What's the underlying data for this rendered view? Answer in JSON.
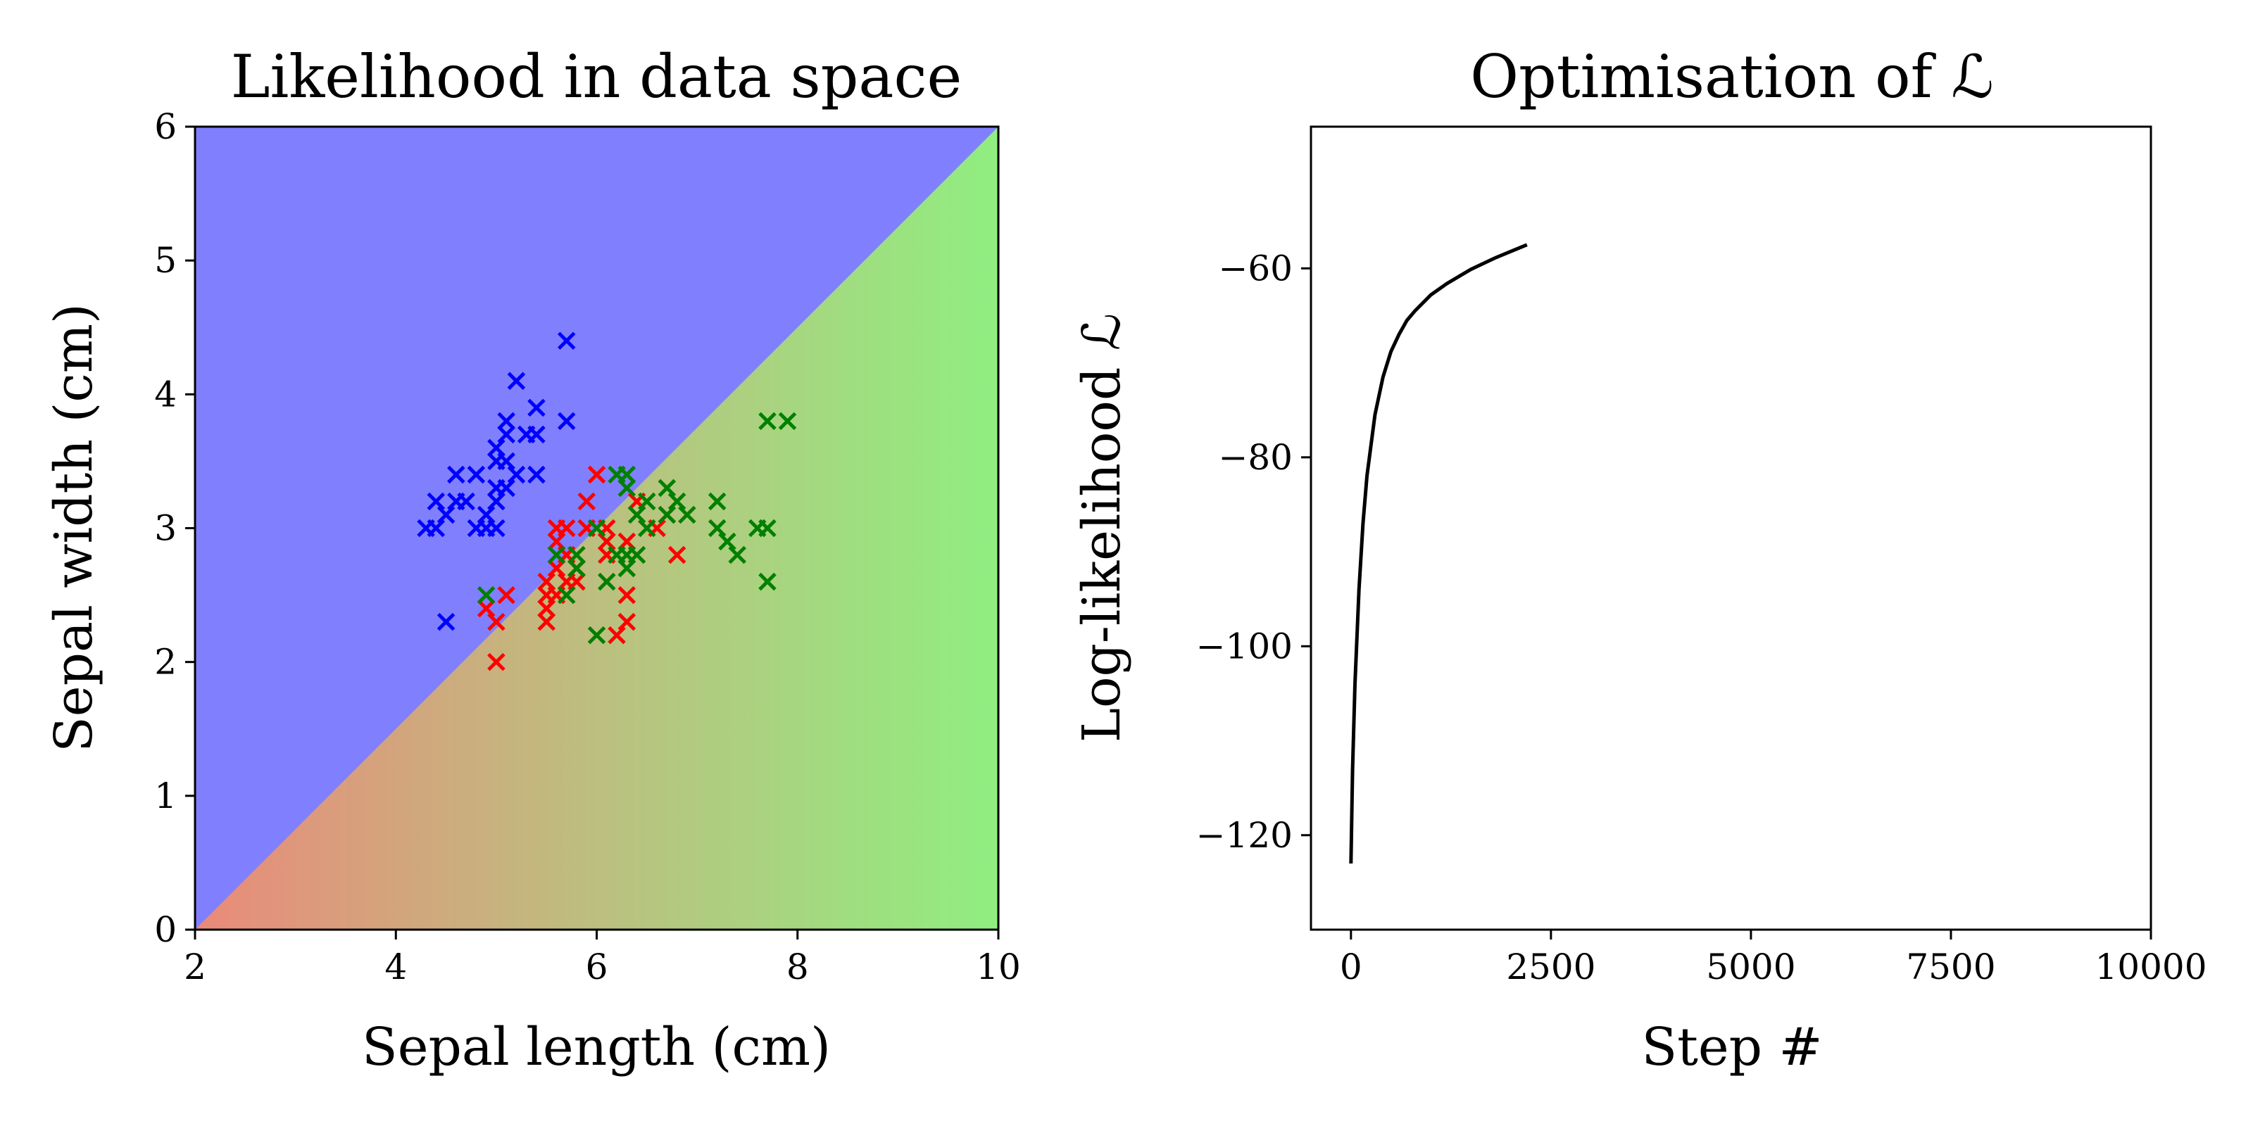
{
  "chart_data": [
    {
      "type": "scatter",
      "title": "Likelihood in data space",
      "xlabel": "Sepal length (cm)",
      "ylabel": "Sepal width (cm)",
      "xlim": [
        2,
        10
      ],
      "ylim": [
        0,
        6
      ],
      "xticks": [
        "2",
        "4",
        "6",
        "8",
        "10"
      ],
      "yticks": [
        "0",
        "1",
        "2",
        "3",
        "4",
        "5",
        "6"
      ],
      "grid": false,
      "background": "class-likelihood color map (blue upper-left, red lower-left, green lower-right)",
      "colors": {
        "blue": "#0000ff",
        "red": "#ff0000",
        "green": "#008000",
        "bg_blue": "#8080ff",
        "bg_red": "#ea8a7a",
        "bg_green": "#90ee80"
      },
      "marker": "x",
      "series": [
        {
          "color": "#0000ff",
          "points": [
            [
              4.3,
              3.0
            ],
            [
              4.4,
              3.0
            ],
            [
              4.4,
              3.2
            ],
            [
              4.5,
              2.3
            ],
            [
              4.5,
              3.1
            ],
            [
              4.6,
              3.2
            ],
            [
              4.6,
              3.4
            ],
            [
              4.7,
              3.2
            ],
            [
              4.8,
              3.0
            ],
            [
              4.8,
              3.4
            ],
            [
              4.9,
              3.0
            ],
            [
              4.9,
              3.1
            ],
            [
              5.0,
              3.0
            ],
            [
              5.0,
              3.2
            ],
            [
              5.0,
              3.3
            ],
            [
              5.0,
              3.5
            ],
            [
              5.0,
              3.6
            ],
            [
              5.1,
              3.3
            ],
            [
              5.1,
              3.5
            ],
            [
              5.1,
              3.7
            ],
            [
              5.1,
              3.8
            ],
            [
              5.2,
              3.4
            ],
            [
              5.2,
              4.1
            ],
            [
              5.3,
              3.7
            ],
            [
              5.4,
              3.4
            ],
            [
              5.4,
              3.7
            ],
            [
              5.4,
              3.9
            ],
            [
              5.7,
              3.8
            ],
            [
              5.7,
              4.4
            ]
          ]
        },
        {
          "color": "#ff0000",
          "points": [
            [
              4.9,
              2.4
            ],
            [
              5.0,
              2.0
            ],
            [
              5.0,
              2.3
            ],
            [
              5.1,
              2.5
            ],
            [
              5.5,
              2.3
            ],
            [
              5.5,
              2.4
            ],
            [
              5.5,
              2.5
            ],
            [
              5.5,
              2.6
            ],
            [
              5.6,
              2.5
            ],
            [
              5.6,
              2.7
            ],
            [
              5.6,
              2.9
            ],
            [
              5.6,
              3.0
            ],
            [
              5.7,
              2.6
            ],
            [
              5.7,
              2.8
            ],
            [
              5.7,
              3.0
            ],
            [
              5.8,
              2.6
            ],
            [
              5.8,
              2.7
            ],
            [
              5.9,
              3.0
            ],
            [
              5.9,
              3.2
            ],
            [
              6.0,
              3.4
            ],
            [
              6.1,
              2.8
            ],
            [
              6.1,
              2.9
            ],
            [
              6.1,
              3.0
            ],
            [
              6.2,
              2.2
            ],
            [
              6.3,
              2.3
            ],
            [
              6.3,
              2.5
            ],
            [
              6.3,
              2.9
            ],
            [
              6.4,
              3.2
            ],
            [
              6.6,
              3.0
            ],
            [
              6.7,
              3.1
            ],
            [
              6.8,
              2.8
            ]
          ]
        },
        {
          "color": "#008000",
          "points": [
            [
              4.9,
              2.5
            ],
            [
              5.6,
              2.8
            ],
            [
              5.7,
              2.5
            ],
            [
              5.8,
              2.7
            ],
            [
              5.8,
              2.8
            ],
            [
              6.0,
              2.2
            ],
            [
              6.0,
              3.0
            ],
            [
              6.1,
              2.6
            ],
            [
              6.2,
              2.8
            ],
            [
              6.2,
              3.4
            ],
            [
              6.3,
              2.7
            ],
            [
              6.3,
              2.8
            ],
            [
              6.3,
              3.3
            ],
            [
              6.3,
              3.4
            ],
            [
              6.4,
              2.8
            ],
            [
              6.4,
              3.1
            ],
            [
              6.5,
              3.0
            ],
            [
              6.5,
              3.2
            ],
            [
              6.7,
              3.1
            ],
            [
              6.7,
              3.3
            ],
            [
              6.8,
              3.2
            ],
            [
              6.9,
              3.1
            ],
            [
              7.2,
              3.0
            ],
            [
              7.2,
              3.2
            ],
            [
              7.3,
              2.9
            ],
            [
              7.4,
              2.8
            ],
            [
              7.6,
              3.0
            ],
            [
              7.7,
              2.6
            ],
            [
              7.7,
              3.0
            ],
            [
              7.7,
              3.8
            ],
            [
              7.9,
              3.8
            ]
          ]
        }
      ]
    },
    {
      "type": "line",
      "title": "Optimisation of ℒ",
      "xlabel": "Step #",
      "ylabel": "Log-likelihood ℒ",
      "xlim": [
        -500,
        10000
      ],
      "ylim": [
        -130,
        -45
      ],
      "xticks": [
        {
          "value": 0,
          "label": "0"
        },
        {
          "value": 2500,
          "label": "2500"
        },
        {
          "value": 5000,
          "label": "5000"
        },
        {
          "value": 7500,
          "label": "7500"
        },
        {
          "value": 10000,
          "label": "10000"
        }
      ],
      "yticks": [
        {
          "value": -120,
          "label": "−120"
        },
        {
          "value": -100,
          "label": "−100"
        },
        {
          "value": -80,
          "label": "−80"
        },
        {
          "value": -60,
          "label": "−60"
        }
      ],
      "grid": false,
      "line_color": "#000000",
      "series": [
        {
          "x": [
            0,
            20,
            50,
            100,
            150,
            200,
            300,
            400,
            500,
            600,
            700,
            800,
            1000,
            1200,
            1500,
            1800,
            2000,
            2200
          ],
          "y": [
            -123,
            -113,
            -104,
            -94,
            -87,
            -82,
            -75.5,
            -71.5,
            -68.8,
            -67,
            -65.5,
            -64.5,
            -62.8,
            -61.6,
            -60.1,
            -58.9,
            -58.2,
            -57.5
          ]
        }
      ]
    }
  ]
}
